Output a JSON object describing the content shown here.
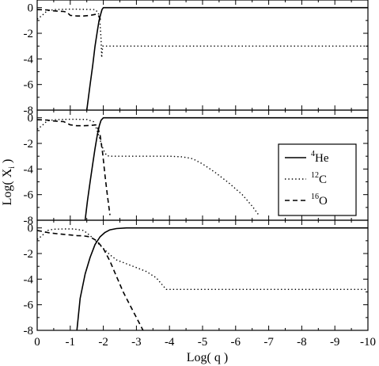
{
  "chart_data": {
    "type": "line",
    "layout": "three vertically stacked panels sharing x axis",
    "xlabel": "Log( q )",
    "ylabel": "Log( X",
    "ylabel_subscript": "i",
    "ylabel_close": " )",
    "xlim": [
      0,
      -10
    ],
    "ylim": [
      -8,
      0.6
    ],
    "x_ticks": [
      "0",
      "-1",
      "-2",
      "-3",
      "-4",
      "-5",
      "-6",
      "-7",
      "-8",
      "-9",
      "-10"
    ],
    "x_tick_values": [
      0,
      -1,
      -2,
      -3,
      -4,
      -5,
      -6,
      -7,
      -8,
      -9,
      -10
    ],
    "y_ticks": [
      "0",
      "-2",
      "-4",
      "-6",
      "-8"
    ],
    "y_tick_values": [
      0,
      -2,
      -4,
      -6,
      -8
    ],
    "grid": false,
    "legend_panel": 1,
    "legend_placement": "right",
    "legend": [
      {
        "mass": "4",
        "element": "He",
        "style": "solid"
      },
      {
        "mass": "12",
        "element": "C",
        "style": "dotted"
      },
      {
        "mass": "16",
        "element": "O",
        "style": "dashed"
      }
    ],
    "panels": [
      {
        "series": [
          {
            "name": "4He",
            "style": "solid",
            "x": [
              -1.5,
              -1.6,
              -1.68,
              -1.75,
              -1.82,
              -1.87,
              -1.92,
              -1.96,
              -2.0,
              -2.1,
              -3,
              -5,
              -7,
              -9,
              -10
            ],
            "y": [
              -8,
              -6,
              -4.5,
              -3,
              -1.8,
              -1.0,
              -0.5,
              -0.15,
              0,
              0,
              0,
              0,
              0,
              0,
              0
            ]
          },
          {
            "name": "12C",
            "style": "dotted",
            "x": [
              0,
              -0.15,
              -0.3,
              -0.5,
              -0.9,
              -1.2,
              -1.5,
              -1.75,
              -1.85,
              -1.9,
              -1.93,
              -1.95,
              -1.98,
              -2.05,
              -3,
              -5,
              -7,
              -9,
              -10
            ],
            "y": [
              -0.9,
              -0.6,
              -0.25,
              -0.15,
              -0.12,
              -0.12,
              -0.13,
              -0.15,
              -0.4,
              -1.2,
              -2.4,
              -3.9,
              -3.0,
              -3.0,
              -3.0,
              -3.0,
              -3.0,
              -3.0,
              -3.0
            ]
          },
          {
            "name": "16O",
            "style": "dashed",
            "x": [
              0,
              -0.3,
              -0.5,
              -0.8,
              -0.9,
              -1.0,
              -1.2,
              -1.4,
              -1.6,
              -1.8,
              -1.88,
              -1.92
            ],
            "y": [
              -0.15,
              -0.18,
              -0.25,
              -0.3,
              -0.35,
              -0.6,
              -0.65,
              -0.65,
              -0.6,
              -0.5,
              -0.7,
              -1.0
            ]
          }
        ]
      },
      {
        "series": [
          {
            "name": "4He",
            "style": "solid",
            "x": [
              -1.45,
              -1.52,
              -1.6,
              -1.68,
              -1.75,
              -1.82,
              -1.88,
              -1.93,
              -2.0,
              -2.1,
              -3,
              -5,
              -7,
              -9,
              -10
            ],
            "y": [
              -8,
              -6.5,
              -5,
              -3.6,
              -2.4,
              -1.3,
              -0.6,
              -0.2,
              0,
              0,
              0,
              0,
              0,
              0,
              0
            ]
          },
          {
            "name": "12C",
            "style": "dotted",
            "x": [
              0,
              -0.15,
              -0.3,
              -0.5,
              -0.9,
              -1.2,
              -1.5,
              -1.7,
              -1.8,
              -1.9,
              -2.0,
              -2.1,
              -2.2,
              -3,
              -4,
              -4.4,
              -4.7,
              -5.0,
              -5.4,
              -5.8,
              -6.2,
              -6.5,
              -6.7
            ],
            "y": [
              -0.9,
              -0.6,
              -0.25,
              -0.15,
              -0.12,
              -0.12,
              -0.13,
              -0.3,
              -0.9,
              -1.7,
              -2.5,
              -2.95,
              -3.0,
              -3.0,
              -3.0,
              -3.05,
              -3.2,
              -3.6,
              -4.3,
              -5.1,
              -6.0,
              -6.9,
              -7.6
            ]
          },
          {
            "name": "16O",
            "style": "dashed",
            "x": [
              0,
              -0.3,
              -0.5,
              -0.8,
              -1.0,
              -1.2,
              -1.4,
              -1.6,
              -1.8,
              -1.9,
              -1.98,
              -2.05,
              -2.12,
              -2.2
            ],
            "y": [
              -0.15,
              -0.18,
              -0.25,
              -0.3,
              -0.55,
              -0.62,
              -0.62,
              -0.6,
              -0.55,
              -1.3,
              -2.8,
              -4.5,
              -6.0,
              -7.6
            ]
          }
        ]
      },
      {
        "series": [
          {
            "name": "4He",
            "style": "solid",
            "x": [
              -1.2,
              -1.3,
              -1.45,
              -1.6,
              -1.75,
              -1.9,
              -2.05,
              -2.2,
              -2.4,
              -2.7,
              -3,
              -5,
              -7,
              -9,
              -10
            ],
            "y": [
              -8,
              -5.5,
              -3.6,
              -2.3,
              -1.3,
              -0.7,
              -0.35,
              -0.15,
              -0.05,
              0,
              0,
              0,
              0,
              0,
              0
            ]
          },
          {
            "name": "12C",
            "style": "dotted",
            "x": [
              0,
              -0.15,
              -0.3,
              -0.5,
              -0.8,
              -1.1,
              -1.4,
              -1.6,
              -1.8,
              -2.0,
              -2.2,
              -2.4,
              -2.7,
              -3.0,
              -3.3,
              -3.6,
              -3.8,
              -3.9,
              -4.0,
              -5,
              -6,
              -7,
              -8,
              -9,
              -10
            ],
            "y": [
              -0.9,
              -0.6,
              -0.2,
              -0.1,
              -0.08,
              -0.08,
              -0.2,
              -0.6,
              -1.1,
              -1.6,
              -2.1,
              -2.5,
              -2.8,
              -3.1,
              -3.4,
              -3.9,
              -4.5,
              -4.8,
              -4.8,
              -4.8,
              -4.8,
              -4.8,
              -4.8,
              -4.8,
              -4.8
            ]
          },
          {
            "name": "16O",
            "style": "dashed",
            "x": [
              0,
              -0.2,
              -0.4,
              -0.6,
              -0.8,
              -1.0,
              -1.2,
              -1.4,
              -1.6,
              -1.8,
              -2.0,
              -2.2,
              -2.4,
              -2.6,
              -2.8,
              -3.0,
              -3.2
            ],
            "y": [
              -0.2,
              -0.3,
              -0.4,
              -0.45,
              -0.5,
              -0.55,
              -0.6,
              -0.62,
              -0.7,
              -1.0,
              -1.6,
              -2.6,
              -3.8,
              -5.0,
              -6.0,
              -7.0,
              -8.0
            ]
          }
        ]
      }
    ]
  }
}
